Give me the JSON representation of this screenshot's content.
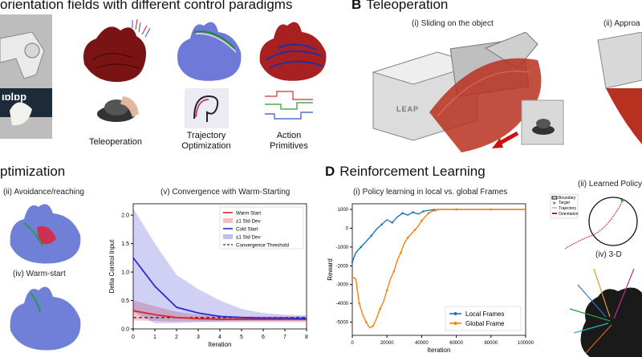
{
  "sections": {
    "a_title": "orientation fields with different control paradigms",
    "b_letter": "B",
    "b_title": "Teleoperation",
    "c_title": "ptimization",
    "d_letter": "D",
    "d_title": "Reinforcement Learning"
  },
  "panel_a": {
    "labels": [
      "Teleoperation",
      "Trajectory Optimization",
      "Action Primitives"
    ],
    "logo_text": "ıɒlɒp"
  },
  "panel_b": {
    "sub1": "(i) Sliding on the object",
    "sub2": "(ii) Approa",
    "robot_text": "LEAP"
  },
  "panel_c": {
    "sub_ii": "(ii) Avoidance/reaching",
    "sub_iv": "(iv) Warm-start"
  },
  "panel_d": {
    "sub_ii": "(ii) Learned Policy",
    "sub_iv": "(iv) 3-D",
    "policy_legend": [
      "Boundary",
      "Target",
      "Trajectory",
      "Orientation"
    ]
  },
  "chart_data": [
    {
      "type": "line",
      "title": "(v) Convergence with  Warm-Starting",
      "xlabel": "Iteration",
      "ylabel": "Delta Control Input",
      "xlim": [
        0,
        8
      ],
      "ylim": [
        0,
        2.2
      ],
      "xticks": [
        "0",
        "1",
        "2",
        "3",
        "4",
        "5",
        "6",
        "7",
        "8"
      ],
      "yticks": [
        "0.0",
        "0.5",
        "1.0",
        "1.5",
        "2.0"
      ],
      "x": [
        0,
        1,
        2,
        3,
        4,
        5,
        6,
        7,
        8
      ],
      "series": [
        {
          "name": "Warm Start",
          "color": "#d62728",
          "values": [
            0.32,
            0.25,
            0.2,
            0.18,
            0.17,
            0.17,
            0.17,
            0.17,
            0.17
          ],
          "lower": [
            0.15,
            0.14,
            0.13,
            0.13,
            0.12,
            0.12,
            0.12,
            0.12,
            0.12
          ],
          "upper": [
            0.5,
            0.4,
            0.3,
            0.25,
            0.23,
            0.22,
            0.22,
            0.22,
            0.22
          ]
        },
        {
          "name": "Cold Start",
          "color": "#2a2ad0",
          "values": [
            1.25,
            0.75,
            0.38,
            0.28,
            0.22,
            0.2,
            0.19,
            0.19,
            0.18
          ],
          "lower": [
            0.3,
            0.1,
            0.1,
            0.12,
            0.13,
            0.14,
            0.14,
            0.14,
            0.14
          ],
          "upper": [
            2.12,
            1.5,
            0.95,
            0.7,
            0.5,
            0.35,
            0.28,
            0.25,
            0.24
          ]
        }
      ],
      "legend": [
        "Warm Start",
        "±1 Std Dev",
        "Cold Start",
        "±1 Std Dev",
        "Convergence Threshold"
      ],
      "threshold": 0.2,
      "legend_position": "top-right",
      "grid": false
    },
    {
      "type": "line",
      "title": "(i) Policy learning in local vs. global Frames",
      "xlabel": "Iteration",
      "ylabel": "Reward",
      "xlim": [
        0,
        100000
      ],
      "ylim": [
        -5700,
        1300
      ],
      "xticks": [
        "0",
        "20000",
        "40000",
        "60000",
        "80000",
        "100000"
      ],
      "yticks": [
        "1000",
        "0",
        "-1000",
        "-2000",
        "-3000",
        "-4000",
        "-5000"
      ],
      "series": [
        {
          "name": "Local Frames",
          "color": "#1f77b4",
          "x": [
            0,
            2000,
            5000,
            8000,
            11000,
            14000,
            17000,
            20000,
            23000,
            26000,
            29000,
            32000,
            35000,
            38000,
            41000,
            44000,
            47000,
            50000,
            60000,
            70000,
            80000,
            90000,
            100000
          ],
          "values": [
            -1800,
            -1300,
            -1000,
            -700,
            -400,
            -50,
            200,
            450,
            300,
            600,
            800,
            700,
            850,
            750,
            900,
            950,
            980,
            1000,
            1000,
            1000,
            1000,
            1000,
            1000
          ]
        },
        {
          "name": "Global Frame",
          "color": "#ff7f0e",
          "x": [
            0,
            2000,
            4000,
            6000,
            8000,
            10000,
            12000,
            14000,
            16000,
            18000,
            20000,
            22000,
            24000,
            26000,
            28000,
            30000,
            32000,
            34000,
            36000,
            38000,
            40000,
            42000,
            44000,
            46000,
            48000,
            50000,
            60000,
            70000,
            80000,
            90000,
            100000
          ],
          "values": [
            -2600,
            -2700,
            -4000,
            -4600,
            -5000,
            -5300,
            -5200,
            -4800,
            -4300,
            -3900,
            -3300,
            -2700,
            -2300,
            -1700,
            -1300,
            -800,
            -500,
            -300,
            -100,
            100,
            400,
            600,
            800,
            900,
            950,
            1000,
            1000,
            1000,
            1000,
            1000,
            1000
          ]
        }
      ],
      "legend_position": "lower-right",
      "grid": false
    }
  ]
}
